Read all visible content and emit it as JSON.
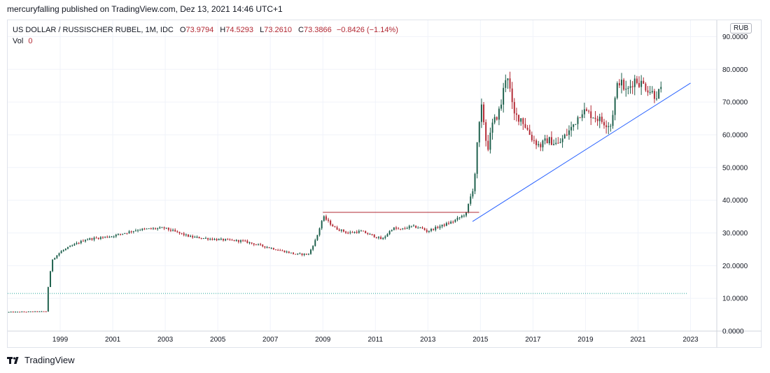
{
  "header": {
    "publisher_line": "mercuryfalling published on TradingView.com, Dez 13, 2021 14:46 UTC+1"
  },
  "legend": {
    "symbol": "US DOLLAR / RUSSISCHER RUBEL, 1M, IDC",
    "open_label": "O",
    "open_value": "73.9794",
    "high_label": "H",
    "high_value": "74.5293",
    "low_label": "L",
    "low_value": "73.2610",
    "close_label": "C",
    "close_value": "73.3866",
    "change": "−0.8426 (−1.14%)",
    "vol_label": "Vol",
    "vol_value": "0"
  },
  "currency_badge": "RUB",
  "footer": {
    "brand": "TradingView"
  },
  "colors": {
    "up": "#1b5e4a",
    "down": "#b22833",
    "trendline": "#2962ff",
    "resistance": "#b22833",
    "baseline": "#26a69a"
  },
  "chart_data": {
    "type": "candlestick",
    "timeframe": "1M",
    "x_range": [
      1997.0,
      2024.0
    ],
    "ylim": [
      0,
      95
    ],
    "x_ticks": [
      "1999",
      "2001",
      "2003",
      "2005",
      "2007",
      "2009",
      "2011",
      "2013",
      "2015",
      "2017",
      "2019",
      "2021",
      "2023"
    ],
    "y_ticks": [
      "0.0000",
      "10.0000",
      "20.0000",
      "30.0000",
      "40.0000",
      "50.0000",
      "60.0000",
      "70.0000",
      "80.0000",
      "90.0000"
    ],
    "grid": true,
    "path_years": [
      1997.0,
      1998.5,
      1998.6,
      1998.75,
      1999.1,
      1999.6,
      2000.0,
      2000.5,
      2001.0,
      2002.0,
      2003.0,
      2004.0,
      2005.0,
      2006.0,
      2007.0,
      2008.0,
      2008.5,
      2008.8,
      2009.05,
      2009.5,
      2010.0,
      2010.5,
      2011.0,
      2011.3,
      2011.7,
      2012.0,
      2012.4,
      2012.8,
      2013.0,
      2013.5,
      2014.0,
      2014.5,
      2014.8,
      2014.95,
      2015.1,
      2015.3,
      2015.5,
      2015.8,
      2016.05,
      2016.3,
      2016.6,
      2017.0,
      2017.3,
      2017.6,
      2018.0,
      2018.5,
      2018.9,
      2019.3,
      2019.7,
      2020.0,
      2020.3,
      2020.6,
      2020.9,
      2021.3,
      2021.7,
      2021.9
    ],
    "path_values": [
      5.8,
      6.0,
      15.0,
      22.0,
      24.5,
      26.5,
      28.0,
      28.5,
      29.0,
      31.0,
      31.5,
      28.8,
      28.0,
      27.5,
      25.5,
      23.5,
      23.5,
      28.5,
      35.0,
      31.5,
      30.0,
      30.5,
      29.0,
      28.0,
      31.5,
      31.0,
      32.0,
      31.5,
      30.5,
      32.0,
      33.5,
      36.0,
      45.0,
      60.0,
      69.0,
      55.0,
      63.0,
      68.0,
      80.0,
      66.0,
      65.0,
      59.0,
      56.5,
      58.5,
      57.0,
      62.0,
      67.5,
      66.0,
      64.0,
      63.0,
      77.0,
      73.0,
      77.0,
      75.0,
      72.0,
      73.3866
    ],
    "trendline": {
      "x": [
        2014.7,
        2023.0
      ],
      "y": [
        33.5,
        75.8
      ]
    },
    "resistance_line": {
      "x": [
        2009.0,
        2014.95
      ],
      "y": [
        36.3,
        36.3
      ]
    },
    "baseline": {
      "x": [
        1997.0,
        2022.9
      ],
      "y": [
        11.5,
        11.5
      ]
    }
  }
}
